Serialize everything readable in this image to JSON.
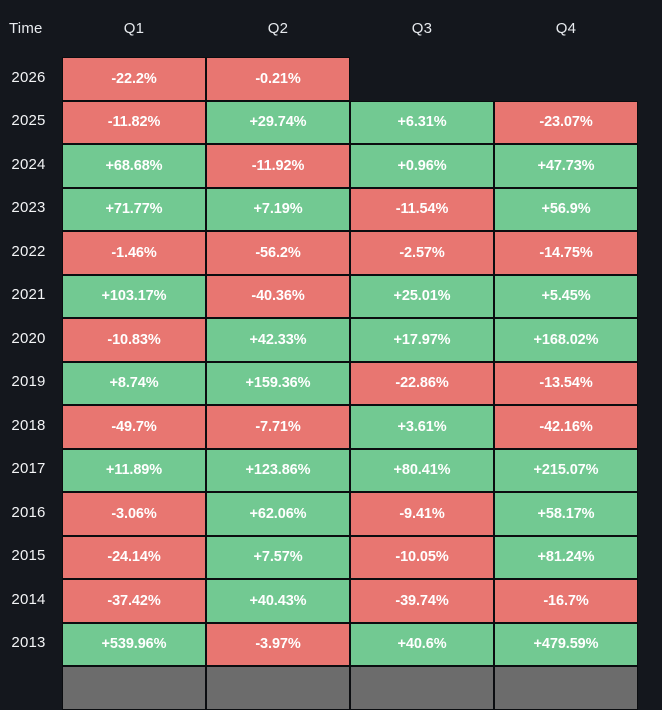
{
  "header": {
    "time_label": "Time",
    "quarters": [
      "Q1",
      "Q2",
      "Q3",
      "Q4"
    ]
  },
  "colors": {
    "background": "#14171d",
    "grid_line": "#0b0d10",
    "positive": "#72c992",
    "negative": "#e87671",
    "pending": "#6c6c6c",
    "header_text": "#e7eaee",
    "cell_text": "#ffffff"
  },
  "chart_data": {
    "type": "heatmap",
    "columns": [
      "Q1",
      "Q2",
      "Q3",
      "Q4"
    ],
    "row_label": "Time",
    "legend": "green = positive quarterly return, red = negative quarterly return, gray = pending",
    "rows": [
      {
        "year": "2026",
        "cells": [
          {
            "text": "-22.2%",
            "value": -22.2,
            "state": "neg"
          },
          {
            "text": "-0.21%",
            "value": -0.21,
            "state": "neg"
          },
          {
            "text": "",
            "value": null,
            "state": "empty"
          },
          {
            "text": "",
            "value": null,
            "state": "empty"
          }
        ]
      },
      {
        "year": "2025",
        "cells": [
          {
            "text": "-11.82%",
            "value": -11.82,
            "state": "neg"
          },
          {
            "text": "+29.74%",
            "value": 29.74,
            "state": "pos"
          },
          {
            "text": "+6.31%",
            "value": 6.31,
            "state": "pos"
          },
          {
            "text": "-23.07%",
            "value": -23.07,
            "state": "neg"
          }
        ]
      },
      {
        "year": "2024",
        "cells": [
          {
            "text": "+68.68%",
            "value": 68.68,
            "state": "pos"
          },
          {
            "text": "-11.92%",
            "value": -11.92,
            "state": "neg"
          },
          {
            "text": "+0.96%",
            "value": 0.96,
            "state": "pos"
          },
          {
            "text": "+47.73%",
            "value": 47.73,
            "state": "pos"
          }
        ]
      },
      {
        "year": "2023",
        "cells": [
          {
            "text": "+71.77%",
            "value": 71.77,
            "state": "pos"
          },
          {
            "text": "+7.19%",
            "value": 7.19,
            "state": "pos"
          },
          {
            "text": "-11.54%",
            "value": -11.54,
            "state": "neg"
          },
          {
            "text": "+56.9%",
            "value": 56.9,
            "state": "pos"
          }
        ]
      },
      {
        "year": "2022",
        "cells": [
          {
            "text": "-1.46%",
            "value": -1.46,
            "state": "neg"
          },
          {
            "text": "-56.2%",
            "value": -56.2,
            "state": "neg"
          },
          {
            "text": "-2.57%",
            "value": -2.57,
            "state": "neg"
          },
          {
            "text": "-14.75%",
            "value": -14.75,
            "state": "neg"
          }
        ]
      },
      {
        "year": "2021",
        "cells": [
          {
            "text": "+103.17%",
            "value": 103.17,
            "state": "pos"
          },
          {
            "text": "-40.36%",
            "value": -40.36,
            "state": "neg"
          },
          {
            "text": "+25.01%",
            "value": 25.01,
            "state": "pos"
          },
          {
            "text": "+5.45%",
            "value": 5.45,
            "state": "pos"
          }
        ]
      },
      {
        "year": "2020",
        "cells": [
          {
            "text": "-10.83%",
            "value": -10.83,
            "state": "neg"
          },
          {
            "text": "+42.33%",
            "value": 42.33,
            "state": "pos"
          },
          {
            "text": "+17.97%",
            "value": 17.97,
            "state": "pos"
          },
          {
            "text": "+168.02%",
            "value": 168.02,
            "state": "pos"
          }
        ]
      },
      {
        "year": "2019",
        "cells": [
          {
            "text": "+8.74%",
            "value": 8.74,
            "state": "pos"
          },
          {
            "text": "+159.36%",
            "value": 159.36,
            "state": "pos"
          },
          {
            "text": "-22.86%",
            "value": -22.86,
            "state": "neg"
          },
          {
            "text": "-13.54%",
            "value": -13.54,
            "state": "neg"
          }
        ]
      },
      {
        "year": "2018",
        "cells": [
          {
            "text": "-49.7%",
            "value": -49.7,
            "state": "neg"
          },
          {
            "text": "-7.71%",
            "value": -7.71,
            "state": "neg"
          },
          {
            "text": "+3.61%",
            "value": 3.61,
            "state": "pos"
          },
          {
            "text": "-42.16%",
            "value": -42.16,
            "state": "neg"
          }
        ]
      },
      {
        "year": "2017",
        "cells": [
          {
            "text": "+11.89%",
            "value": 11.89,
            "state": "pos"
          },
          {
            "text": "+123.86%",
            "value": 123.86,
            "state": "pos"
          },
          {
            "text": "+80.41%",
            "value": 80.41,
            "state": "pos"
          },
          {
            "text": "+215.07%",
            "value": 215.07,
            "state": "pos"
          }
        ]
      },
      {
        "year": "2016",
        "cells": [
          {
            "text": "-3.06%",
            "value": -3.06,
            "state": "neg"
          },
          {
            "text": "+62.06%",
            "value": 62.06,
            "state": "pos"
          },
          {
            "text": "-9.41%",
            "value": -9.41,
            "state": "neg"
          },
          {
            "text": "+58.17%",
            "value": 58.17,
            "state": "pos"
          }
        ]
      },
      {
        "year": "2015",
        "cells": [
          {
            "text": "-24.14%",
            "value": -24.14,
            "state": "neg"
          },
          {
            "text": "+7.57%",
            "value": 7.57,
            "state": "pos"
          },
          {
            "text": "-10.05%",
            "value": -10.05,
            "state": "neg"
          },
          {
            "text": "+81.24%",
            "value": 81.24,
            "state": "pos"
          }
        ]
      },
      {
        "year": "2014",
        "cells": [
          {
            "text": "-37.42%",
            "value": -37.42,
            "state": "neg"
          },
          {
            "text": "+40.43%",
            "value": 40.43,
            "state": "pos"
          },
          {
            "text": "-39.74%",
            "value": -39.74,
            "state": "neg"
          },
          {
            "text": "-16.7%",
            "value": -16.7,
            "state": "neg"
          }
        ]
      },
      {
        "year": "2013",
        "cells": [
          {
            "text": "+539.96%",
            "value": 539.96,
            "state": "pos"
          },
          {
            "text": "-3.97%",
            "value": -3.97,
            "state": "neg"
          },
          {
            "text": "+40.6%",
            "value": 40.6,
            "state": "pos"
          },
          {
            "text": "+479.59%",
            "value": 479.59,
            "state": "pos"
          }
        ]
      },
      {
        "year": "",
        "cells": [
          {
            "text": "",
            "value": null,
            "state": "pending"
          },
          {
            "text": "",
            "value": null,
            "state": "pending"
          },
          {
            "text": "",
            "value": null,
            "state": "pending"
          },
          {
            "text": "",
            "value": null,
            "state": "pending"
          }
        ]
      }
    ]
  }
}
